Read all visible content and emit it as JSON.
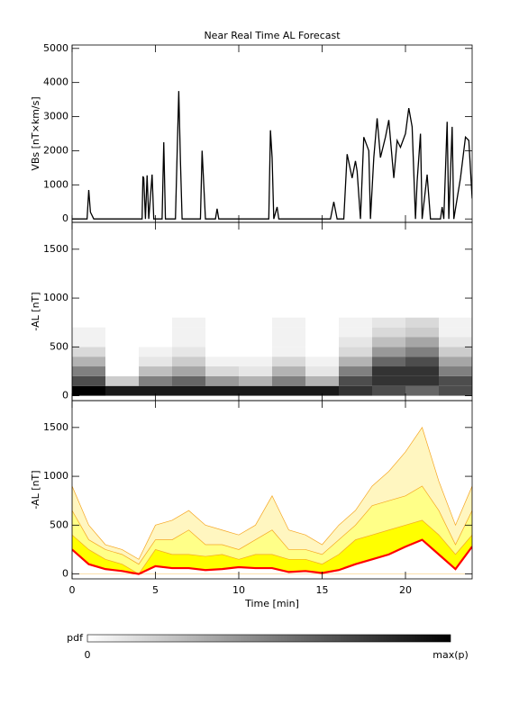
{
  "chart_data": [
    {
      "type": "line",
      "title": "Near Real Time AL Forecast",
      "ylabel": "VBs [nT×km/s]",
      "color": "#000000",
      "xlim": [
        0,
        24
      ],
      "ylim": [
        -100,
        5100
      ],
      "yticks": [
        0,
        1000,
        2000,
        3000,
        4000,
        5000
      ],
      "x": [
        0,
        0.9,
        1.0,
        1.1,
        1.3,
        4.2,
        4.25,
        4.3,
        4.4,
        4.5,
        4.6,
        4.8,
        4.9,
        5.4,
        5.5,
        5.6,
        6.2,
        6.4,
        6.5,
        6.6,
        7.7,
        7.8,
        7.9,
        8.0,
        8.6,
        8.7,
        8.8,
        11.8,
        11.9,
        12.0,
        12.1,
        12.3,
        12.4,
        15.5,
        15.7,
        15.9,
        16.3,
        16.5,
        16.8,
        17.0,
        17.1,
        17.3,
        17.5,
        17.8,
        17.9,
        18.1,
        18.3,
        18.5,
        18.8,
        19.0,
        19.3,
        19.5,
        19.7,
        20.0,
        20.2,
        20.4,
        20.6,
        20.7,
        20.9,
        21.0,
        21.3,
        21.5,
        22.1,
        22.2,
        22.3,
        22.5,
        22.6,
        22.8,
        22.9,
        23.3,
        23.6,
        23.8,
        24
      ],
      "values": [
        0,
        0,
        850,
        200,
        0,
        0,
        1250,
        1200,
        0,
        1280,
        0,
        1300,
        0,
        0,
        2250,
        0,
        0,
        3750,
        1700,
        0,
        0,
        2000,
        1000,
        0,
        0,
        300,
        0,
        0,
        2600,
        1800,
        0,
        350,
        0,
        0,
        500,
        0,
        0,
        1900,
        1200,
        1700,
        1400,
        0,
        2400,
        2000,
        0,
        1800,
        2950,
        1800,
        2400,
        2900,
        1200,
        2300,
        2100,
        2500,
        3250,
        2700,
        0,
        1100,
        2500,
        0,
        1300,
        0,
        0,
        350,
        0,
        2850,
        0,
        2700,
        0,
        1200,
        2400,
        2300,
        600
      ]
    },
    {
      "type": "heatmap",
      "ylabel": "-AL [nT]",
      "xlim": [
        0,
        24
      ],
      "ylim": [
        -50,
        1775
      ],
      "yticks": [
        0,
        500,
        1000,
        1500
      ],
      "xbins": [
        0,
        2,
        4,
        6,
        8,
        10,
        12,
        14,
        16,
        18,
        20,
        22,
        24
      ],
      "ybins": [
        0,
        100,
        200,
        300,
        400,
        500,
        600,
        700,
        800
      ],
      "z": [
        [
          1.0,
          0.7,
          0.5,
          0.3,
          0.15,
          0.05,
          0.05,
          0
        ],
        [
          0.9,
          0.2,
          0,
          0,
          0,
          0,
          0,
          0
        ],
        [
          0.9,
          0.5,
          0.25,
          0.1,
          0.05,
          0,
          0,
          0
        ],
        [
          0.9,
          0.6,
          0.35,
          0.2,
          0.1,
          0.05,
          0.05,
          0.05
        ],
        [
          0.9,
          0.4,
          0.15,
          0.05,
          0,
          0,
          0,
          0
        ],
        [
          0.9,
          0.3,
          0.1,
          0.05,
          0,
          0,
          0,
          0
        ],
        [
          0.9,
          0.5,
          0.3,
          0.15,
          0.05,
          0.05,
          0.05,
          0.05
        ],
        [
          0.9,
          0.3,
          0.1,
          0.05,
          0,
          0,
          0,
          0
        ],
        [
          0.8,
          0.7,
          0.5,
          0.3,
          0.15,
          0.1,
          0.05,
          0.05
        ],
        [
          0.7,
          0.8,
          0.8,
          0.6,
          0.4,
          0.25,
          0.15,
          0.1
        ],
        [
          0.6,
          0.8,
          0.8,
          0.7,
          0.5,
          0.35,
          0.2,
          0.15
        ],
        [
          0.7,
          0.7,
          0.5,
          0.35,
          0.2,
          0.1,
          0.05,
          0.05
        ]
      ]
    },
    {
      "type": "area",
      "ylabel": "-AL [nT]",
      "xlabel": "Time [min]",
      "xlim": [
        0,
        24
      ],
      "xticks": [
        0,
        5,
        10,
        15,
        20
      ],
      "ylim": [
        -50,
        1775
      ],
      "yticks": [
        0,
        500,
        1000,
        1500
      ],
      "edge_color": "#f5a623",
      "x": [
        0,
        1,
        2,
        3,
        4,
        5,
        6,
        7,
        8,
        9,
        10,
        11,
        12,
        13,
        14,
        15,
        16,
        17,
        18,
        19,
        20,
        21,
        22,
        23,
        24
      ],
      "series": [
        {
          "color": "#ff0000",
          "values": [
            250,
            100,
            50,
            30,
            0,
            80,
            60,
            60,
            40,
            50,
            70,
            60,
            60,
            20,
            30,
            10,
            40,
            100,
            150,
            200,
            280,
            350,
            200,
            50,
            280
          ]
        },
        {
          "color": "#ffff00",
          "values": [
            400,
            250,
            150,
            100,
            0,
            250,
            200,
            200,
            180,
            200,
            150,
            200,
            200,
            150,
            150,
            100,
            200,
            350,
            400,
            450,
            500,
            550,
            400,
            200,
            400
          ]
        },
        {
          "color": "#ffff88",
          "values": [
            650,
            350,
            250,
            200,
            100,
            350,
            350,
            450,
            300,
            300,
            250,
            350,
            450,
            250,
            250,
            200,
            350,
            500,
            700,
            750,
            800,
            900,
            650,
            300,
            650
          ]
        },
        {
          "color": "#fff6c0",
          "values": [
            900,
            500,
            300,
            250,
            150,
            500,
            550,
            650,
            500,
            450,
            400,
            500,
            800,
            450,
            400,
            300,
            500,
            650,
            900,
            1050,
            1250,
            1500,
            950,
            500,
            900
          ]
        }
      ]
    }
  ],
  "colorbar": {
    "label": "pdf",
    "min_label": "0",
    "max_label": "max(p)"
  }
}
